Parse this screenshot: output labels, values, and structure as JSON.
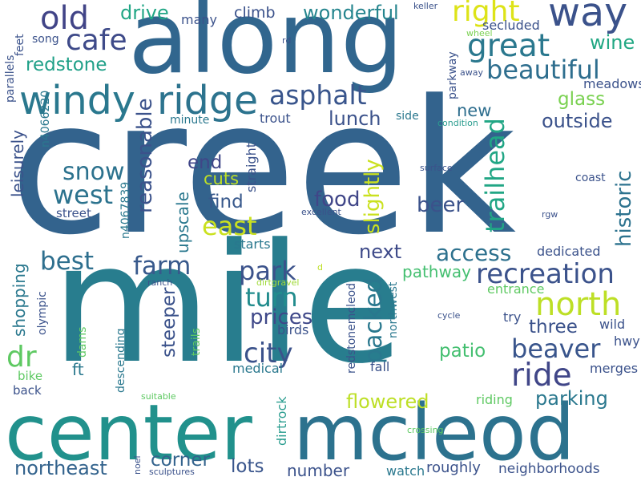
{
  "words": [
    {
      "text": "creek",
      "color": "#33638d"
    },
    {
      "text": "mile",
      "color": "#287d8e"
    },
    {
      "text": "along",
      "color": "#31668e"
    },
    {
      "text": "center",
      "color": "#21918c"
    },
    {
      "text": "mcleod",
      "color": "#2c728e"
    },
    {
      "text": "windy",
      "color": "#2a788e"
    },
    {
      "text": "ridge",
      "color": "#2c738e"
    },
    {
      "text": "way",
      "color": "#3b528b"
    },
    {
      "text": "old",
      "color": "#414487"
    },
    {
      "text": "cafe",
      "color": "#3e4a89"
    },
    {
      "text": "great",
      "color": "#2a788e"
    },
    {
      "text": "beautiful",
      "color": "#2e6e8e"
    },
    {
      "text": "right",
      "color": "#dde318"
    },
    {
      "text": "asphalt",
      "color": "#39558c"
    },
    {
      "text": "wonderful",
      "color": "#25858e"
    },
    {
      "text": "drive",
      "color": "#21a685"
    },
    {
      "text": "climb",
      "color": "#3b528b"
    },
    {
      "text": "redstone",
      "color": "#1fa088"
    },
    {
      "text": "wine",
      "color": "#22a884"
    },
    {
      "text": "north",
      "color": "#bddf26"
    },
    {
      "text": "ride",
      "color": "#404688"
    },
    {
      "text": "recreation",
      "color": "#3b528b"
    },
    {
      "text": "access",
      "color": "#2d718e"
    },
    {
      "text": "park",
      "color": "#3b528b"
    },
    {
      "text": "farm",
      "color": "#38598c"
    },
    {
      "text": "best",
      "color": "#2e6f8e"
    },
    {
      "text": "west",
      "color": "#2c738e"
    },
    {
      "text": "snow",
      "color": "#2c728e"
    },
    {
      "text": "east",
      "color": "#cae11f"
    },
    {
      "text": "turn",
      "color": "#228c8d"
    },
    {
      "text": "city",
      "color": "#3b528b"
    },
    {
      "text": "prices",
      "color": "#3f4889"
    },
    {
      "text": "beaver",
      "color": "#39558c"
    },
    {
      "text": "three",
      "color": "#3b528b"
    },
    {
      "text": "patio",
      "color": "#44bf70"
    },
    {
      "text": "parking",
      "color": "#2a788e"
    },
    {
      "text": "flowered",
      "color": "#bddf26"
    },
    {
      "text": "northeast",
      "color": "#33638d"
    },
    {
      "text": "corner",
      "color": "#33638d"
    },
    {
      "text": "lots",
      "color": "#39558c"
    },
    {
      "text": "number",
      "color": "#3b528b"
    },
    {
      "text": "roughly",
      "color": "#3b528b"
    },
    {
      "text": "neighborhoods",
      "color": "#3b528b"
    },
    {
      "text": "lunch",
      "color": "#3b528b"
    },
    {
      "text": "new",
      "color": "#2e6e8e"
    },
    {
      "text": "food",
      "color": "#404688"
    },
    {
      "text": "beer",
      "color": "#3b528b"
    },
    {
      "text": "find",
      "color": "#38598c"
    },
    {
      "text": "end",
      "color": "#404688"
    },
    {
      "text": "cuts",
      "color": "#bddf26"
    },
    {
      "text": "next",
      "color": "#3e4a89"
    },
    {
      "text": "pathway",
      "color": "#44bf70"
    },
    {
      "text": "outside",
      "color": "#3b528b"
    },
    {
      "text": "glass",
      "color": "#7ad151"
    },
    {
      "text": "meadows",
      "color": "#3b528b"
    },
    {
      "text": "secluded",
      "color": "#3b528b"
    },
    {
      "text": "many",
      "color": "#3b528b"
    },
    {
      "text": "trout",
      "color": "#3b528b"
    },
    {
      "text": "minute",
      "color": "#2a788e"
    },
    {
      "text": "dedicated",
      "color": "#3b528b"
    },
    {
      "text": "entrance",
      "color": "#5ec962"
    },
    {
      "text": "try",
      "color": "#3b528b"
    },
    {
      "text": "wild",
      "color": "#3b528b"
    },
    {
      "text": "hwy",
      "color": "#3b528b"
    },
    {
      "text": "merges",
      "color": "#3b528b"
    },
    {
      "text": "riding",
      "color": "#5ec962"
    },
    {
      "text": "watch",
      "color": "#2a788e"
    },
    {
      "text": "fall",
      "color": "#3b528b"
    },
    {
      "text": "medical",
      "color": "#2a788e"
    },
    {
      "text": "birds",
      "color": "#3b528b"
    },
    {
      "text": "starts",
      "color": "#2a788e"
    },
    {
      "text": "ft",
      "color": "#2a788e"
    },
    {
      "text": "dr",
      "color": "#5ec962"
    },
    {
      "text": "bike",
      "color": "#5ec962"
    },
    {
      "text": "back",
      "color": "#3b528b"
    },
    {
      "text": "street",
      "color": "#3b528b"
    },
    {
      "text": "song",
      "color": "#3b528b"
    },
    {
      "text": "side",
      "color": "#2a788e"
    },
    {
      "text": "condition",
      "color": "#2a9d8f"
    },
    {
      "text": "wheel",
      "color": "#7ad151"
    },
    {
      "text": "away",
      "color": "#3b528b"
    },
    {
      "text": "keller",
      "color": "#3b528b"
    },
    {
      "text": "rd",
      "color": "#3b528b"
    },
    {
      "text": "surface",
      "color": "#3b528b"
    },
    {
      "text": "excellent",
      "color": "#3b528b"
    },
    {
      "text": "rgw",
      "color": "#3b528b"
    },
    {
      "text": "coast",
      "color": "#3b528b"
    },
    {
      "text": "cycle",
      "color": "#3b528b"
    },
    {
      "text": "ranch",
      "color": "#3b528b"
    },
    {
      "text": "dirtgravel",
      "color": "#a0da39"
    },
    {
      "text": "d",
      "color": "#bddf26"
    },
    {
      "text": "suitable",
      "color": "#5ec962"
    },
    {
      "text": "crossing",
      "color": "#5ec962"
    },
    {
      "text": "sculptures",
      "color": "#3b528b"
    },
    {
      "text": "trailhead",
      "color": "#21a685"
    },
    {
      "text": "slightly",
      "color": "#cae11f"
    },
    {
      "text": "packed",
      "color": "#2a788e"
    },
    {
      "text": "historic",
      "color": "#2c728e"
    },
    {
      "text": "reasonable",
      "color": "#3b528b"
    },
    {
      "text": "upscale",
      "color": "#2a788e"
    },
    {
      "text": "straight",
      "color": "#3b528b"
    },
    {
      "text": "leisurely",
      "color": "#3b528b"
    },
    {
      "text": "n4066220",
      "color": "#2a788e"
    },
    {
      "text": "n4067839",
      "color": "#2a788e"
    },
    {
      "text": "parallels",
      "color": "#3b528b"
    },
    {
      "text": "feet",
      "color": "#3b528b"
    },
    {
      "text": "shopping",
      "color": "#2a788e"
    },
    {
      "text": "olympic",
      "color": "#3b528b"
    },
    {
      "text": "dams",
      "color": "#5ec962"
    },
    {
      "text": "descending",
      "color": "#2a788e"
    },
    {
      "text": "steeper",
      "color": "#3b528b"
    },
    {
      "text": "trails",
      "color": "#5ec962"
    },
    {
      "text": "dirtrock",
      "color": "#2a9d8f"
    },
    {
      "text": "noel",
      "color": "#3b528b"
    },
    {
      "text": "redstonemcleod",
      "color": "#3b528b"
    },
    {
      "text": "northwest",
      "color": "#2a788e"
    },
    {
      "text": "parkway",
      "color": "#3b528b"
    }
  ]
}
